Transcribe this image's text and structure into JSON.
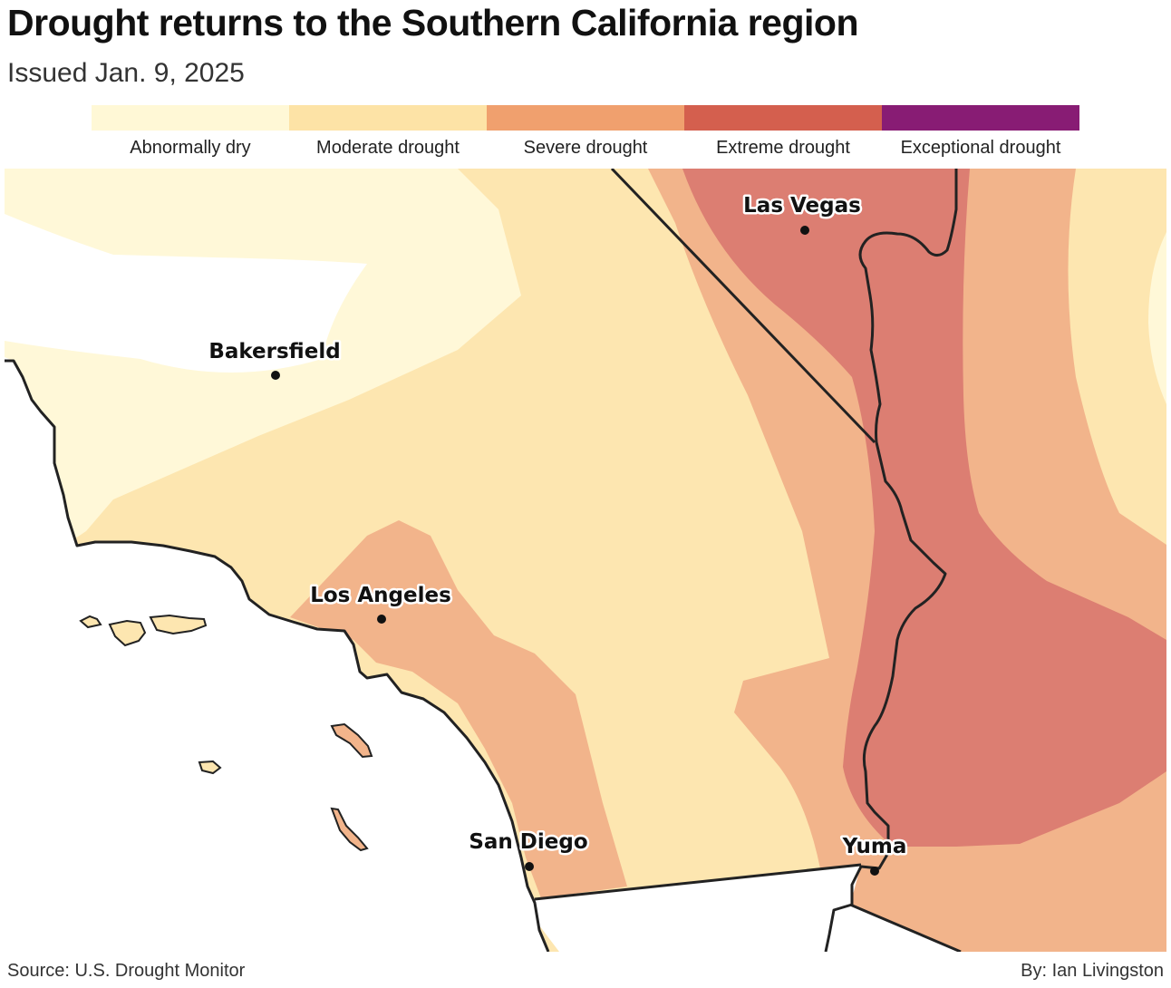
{
  "title": "Drought returns to the Southern California region",
  "subtitle": "Issued Jan. 9, 2025",
  "legend": [
    {
      "label": "Abnormally dry",
      "color": "#fff8d6"
    },
    {
      "label": "Moderate drought",
      "color": "#fde3a6"
    },
    {
      "label": "Severe drought",
      "color": "#f0a06e"
    },
    {
      "label": "Extreme drought",
      "color": "#d45f4e"
    },
    {
      "label": "Exceptional drought",
      "color": "#881c74"
    }
  ],
  "map_colors": {
    "abnormally_dry": "#fff8d8",
    "moderate": "#fde6b0",
    "severe": "#f2b48b",
    "extreme": "#dc7e72",
    "land": "#ffffff",
    "border": "#222222"
  },
  "cities": {
    "las_vegas": "Las Vegas",
    "bakersfield": "Bakersfield",
    "los_angeles": "Los Angeles",
    "san_diego": "San Diego",
    "yuma": "Yuma"
  },
  "source": "Source: U.S. Drought Monitor",
  "byline": "By: Ian Livingston"
}
